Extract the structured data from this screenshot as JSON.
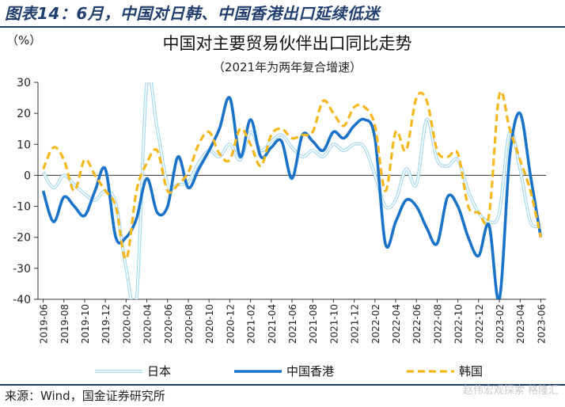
{
  "figure_title": "图表14：6月，中国对日韩、中国香港出口延续低迷",
  "source": "来源：Wind，国金证券研究所",
  "watermark": "赵伟宏观探索  格隆汇",
  "colors": {
    "japan": "#a6d9f0",
    "hongkong": "#1a73c9",
    "korea": "#f5b81c",
    "title": "#1f3e6e",
    "axis": "#333333"
  },
  "chart_data": {
    "type": "line",
    "title": "中国对主要贸易伙伴出口同比走势",
    "subtitle": "（2021年为两年复合增速）",
    "ylabel": "（%）",
    "xlabel": "",
    "ylim": [
      -40,
      30
    ],
    "yticks": [
      30,
      20,
      10,
      0,
      -10,
      -20,
      -30,
      -40
    ],
    "grid": false,
    "legend_position": "bottom",
    "x": [
      "2019-06",
      "2019-07",
      "2019-08",
      "2019-09",
      "2019-10",
      "2019-11",
      "2019-12",
      "2020-01",
      "2020-02",
      "2020-03",
      "2020-04",
      "2020-05",
      "2020-06",
      "2020-07",
      "2020-08",
      "2020-09",
      "2020-10",
      "2020-11",
      "2020-12",
      "2021-01",
      "2021-02",
      "2021-03",
      "2021-04",
      "2021-05",
      "2021-06",
      "2021-07",
      "2021-08",
      "2021-09",
      "2021-10",
      "2021-11",
      "2021-12",
      "2022-01",
      "2022-02",
      "2022-03",
      "2022-04",
      "2022-05",
      "2022-06",
      "2022-07",
      "2022-08",
      "2022-09",
      "2022-10",
      "2022-11",
      "2022-12",
      "2023-01",
      "2023-02",
      "2023-03",
      "2023-04",
      "2023-05",
      "2023-06"
    ],
    "xtick_labels": [
      "2019-06",
      "2019-08",
      "2019-10",
      "2019-12",
      "2020-02",
      "2020-04",
      "2020-06",
      "2020-08",
      "2020-10",
      "2020-12",
      "2021-02",
      "2021-04",
      "2021-06",
      "2021-08",
      "2021-10",
      "2021-12",
      "2022-02",
      "2022-04",
      "2022-06",
      "2022-08",
      "2022-10",
      "2022-12",
      "2023-02",
      "2023-04",
      "2023-06"
    ],
    "series": [
      {
        "name": "日本",
        "style": "double",
        "values": [
          1,
          -4,
          0,
          -3,
          -6,
          -8,
          -5,
          -9,
          -30,
          -40,
          30,
          15,
          -3,
          -3,
          -2,
          4,
          8,
          6,
          10,
          5,
          14,
          8,
          11,
          13,
          9,
          6,
          8,
          6,
          10,
          8,
          10,
          9,
          0,
          -10,
          -8,
          2,
          -3,
          18,
          5,
          3,
          5,
          -5,
          -12,
          -15,
          -12,
          14,
          2,
          -15,
          -16
        ]
      },
      {
        "name": "中国香港",
        "style": "solid",
        "values": [
          -5,
          -15,
          -7,
          -10,
          -13,
          -5,
          2,
          -20,
          -20,
          -14,
          -1,
          -12,
          -10,
          6,
          -4,
          2,
          8,
          15,
          25,
          6,
          18,
          6,
          9,
          11,
          -1,
          13,
          11,
          8,
          14,
          12,
          16,
          18,
          12,
          -22,
          -15,
          -8,
          -10,
          -17,
          -22,
          -7,
          -10,
          -20,
          -26,
          -16,
          -40,
          6,
          20,
          0,
          -20
        ]
      },
      {
        "name": "韩国",
        "style": "dashed",
        "values": [
          2,
          9,
          5,
          -5,
          5,
          0,
          -5,
          -10,
          -27,
          -5,
          4,
          8,
          -5,
          -3,
          1,
          10,
          14,
          7,
          5,
          15,
          10,
          3,
          13,
          15,
          12,
          13,
          14,
          24,
          20,
          16,
          22,
          22,
          16,
          -5,
          14,
          8,
          25,
          24,
          8,
          6,
          7,
          -10,
          -12,
          -13,
          26,
          15,
          5,
          -5,
          -20
        ]
      }
    ]
  }
}
